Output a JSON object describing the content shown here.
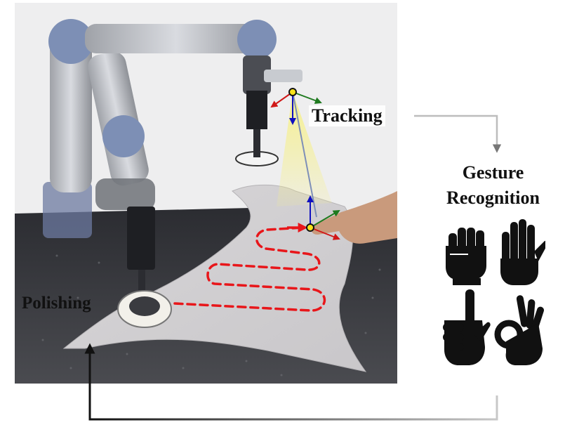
{
  "labels": {
    "tracking": "Tracking",
    "polishing": "Polishing",
    "gesture_line1": "Gesture",
    "gesture_line2": "Recognition"
  },
  "icons": [
    "fist-icon",
    "open-palm-icon",
    "pointing-finger-icon",
    "ok-hand-icon"
  ],
  "colors": {
    "path": "#e8161a",
    "axis_x": "#d01818",
    "axis_y": "#1f7a1f",
    "axis_z": "#1010c0",
    "beam": "#f6f08a",
    "marker": "#f7e21a"
  }
}
